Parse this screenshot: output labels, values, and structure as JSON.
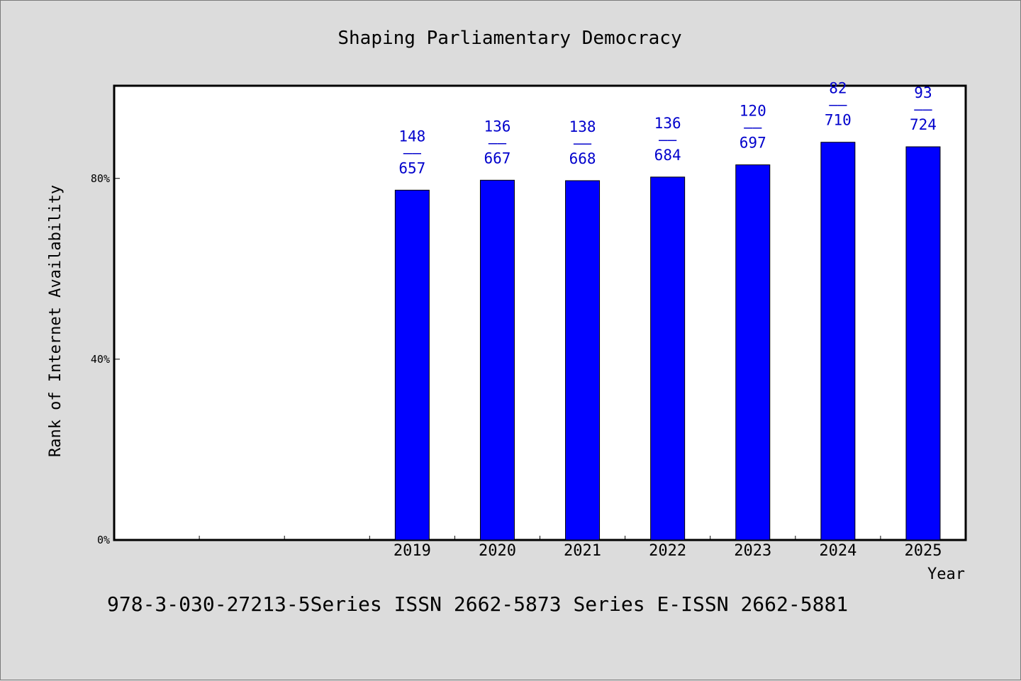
{
  "chart_data": {
    "type": "bar",
    "title": "Shaping Parliamentary Democracy",
    "footer": "978-3-030-27213-5Series ISSN 2662-5873 Series E-ISSN 2662-5881",
    "xlabel": "Year",
    "ylabel": "Rank of Internet Availability",
    "yticks": [
      "0%",
      "40%",
      "80%"
    ],
    "ytick_values": [
      0,
      40,
      80
    ],
    "ylim": [
      0,
      100.5
    ],
    "grid": false,
    "bar_color": "#0000ff",
    "label_color": "#0000cc",
    "categories": [
      "",
      "",
      "",
      "2019",
      "2020",
      "2021",
      "2022",
      "2023",
      "2024",
      "2025"
    ],
    "values": [
      null,
      null,
      null,
      77.4,
      79.6,
      79.5,
      80.3,
      83.0,
      88.0,
      87.0
    ],
    "labels_top": [
      "",
      "",
      "",
      "148",
      "136",
      "138",
      "136",
      "120",
      "82",
      "93"
    ],
    "labels_bottom": [
      "",
      "",
      "",
      "657",
      "667",
      "668",
      "684",
      "697",
      "710",
      "724"
    ],
    "label_separator": "——"
  }
}
